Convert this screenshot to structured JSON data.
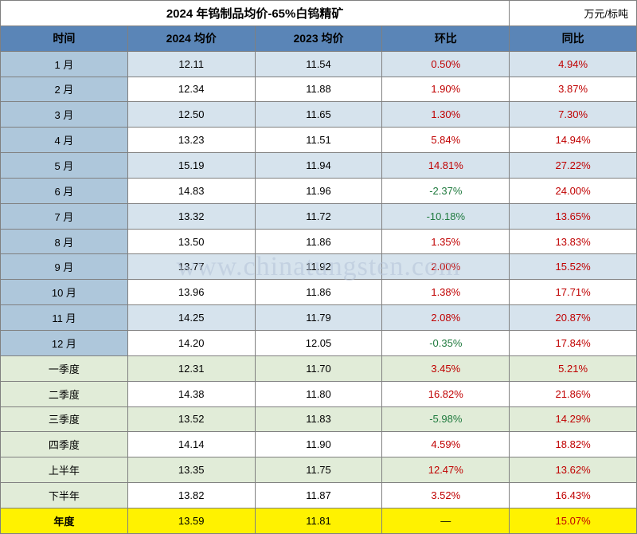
{
  "title": "2024 年钨制品均价-65%白钨精矿",
  "unit": "万元/标吨",
  "watermark": "www.chinatungsten.com",
  "columns": [
    "时间",
    "2024 均价",
    "2023 均价",
    "环比",
    "同比"
  ],
  "column_widths": [
    "20%",
    "20%",
    "20%",
    "20%",
    "20%"
  ],
  "header_bg": "#5a85b7",
  "header_text_color": "#000000",
  "colors": {
    "blue": "#aec7db",
    "lightblue": "#d6e3ed",
    "white": "#ffffff",
    "green": "#e1ecd8",
    "yellow": "#fff200",
    "border": "#808080",
    "pos_pct": "#c00000",
    "neg_pct": "#1f7a3e"
  },
  "rows": [
    {
      "label": "1 月",
      "v2024": "12.11",
      "v2023": "11.54",
      "mom": "0.50%",
      "mom_neg": false,
      "yoy": "4.94%",
      "yoy_neg": false,
      "label_bg": "blue",
      "row_bg": "lightblue"
    },
    {
      "label": "2 月",
      "v2024": "12.34",
      "v2023": "11.88",
      "mom": "1.90%",
      "mom_neg": false,
      "yoy": "3.87%",
      "yoy_neg": false,
      "label_bg": "blue",
      "row_bg": "white"
    },
    {
      "label": "3 月",
      "v2024": "12.50",
      "v2023": "11.65",
      "mom": "1.30%",
      "mom_neg": false,
      "yoy": "7.30%",
      "yoy_neg": false,
      "label_bg": "blue",
      "row_bg": "lightblue"
    },
    {
      "label": "4 月",
      "v2024": "13.23",
      "v2023": "11.51",
      "mom": "5.84%",
      "mom_neg": false,
      "yoy": "14.94%",
      "yoy_neg": false,
      "label_bg": "blue",
      "row_bg": "white"
    },
    {
      "label": "5 月",
      "v2024": "15.19",
      "v2023": "11.94",
      "mom": "14.81%",
      "mom_neg": false,
      "yoy": "27.22%",
      "yoy_neg": false,
      "label_bg": "blue",
      "row_bg": "lightblue"
    },
    {
      "label": "6 月",
      "v2024": "14.83",
      "v2023": "11.96",
      "mom": "-2.37%",
      "mom_neg": true,
      "yoy": "24.00%",
      "yoy_neg": false,
      "label_bg": "blue",
      "row_bg": "white"
    },
    {
      "label": "7 月",
      "v2024": "13.32",
      "v2023": "11.72",
      "mom": "-10.18%",
      "mom_neg": true,
      "yoy": "13.65%",
      "yoy_neg": false,
      "label_bg": "blue",
      "row_bg": "lightblue"
    },
    {
      "label": "8 月",
      "v2024": "13.50",
      "v2023": "11.86",
      "mom": "1.35%",
      "mom_neg": false,
      "yoy": "13.83%",
      "yoy_neg": false,
      "label_bg": "blue",
      "row_bg": "white"
    },
    {
      "label": "9 月",
      "v2024": "13.77",
      "v2023": "11.92",
      "mom": "2.00%",
      "mom_neg": false,
      "yoy": "15.52%",
      "yoy_neg": false,
      "label_bg": "blue",
      "row_bg": "lightblue"
    },
    {
      "label": "10 月",
      "v2024": "13.96",
      "v2023": "11.86",
      "mom": "1.38%",
      "mom_neg": false,
      "yoy": "17.71%",
      "yoy_neg": false,
      "label_bg": "blue",
      "row_bg": "white"
    },
    {
      "label": "11 月",
      "v2024": "14.25",
      "v2023": "11.79",
      "mom": "2.08%",
      "mom_neg": false,
      "yoy": "20.87%",
      "yoy_neg": false,
      "label_bg": "blue",
      "row_bg": "lightblue"
    },
    {
      "label": "12 月",
      "v2024": "14.20",
      "v2023": "12.05",
      "mom": "-0.35%",
      "mom_neg": true,
      "yoy": "17.84%",
      "yoy_neg": false,
      "label_bg": "blue",
      "row_bg": "white"
    },
    {
      "label": "一季度",
      "v2024": "12.31",
      "v2023": "11.70",
      "mom": "3.45%",
      "mom_neg": false,
      "yoy": "5.21%",
      "yoy_neg": false,
      "label_bg": "green",
      "row_bg": "green"
    },
    {
      "label": "二季度",
      "v2024": "14.38",
      "v2023": "11.80",
      "mom": "16.82%",
      "mom_neg": false,
      "yoy": "21.86%",
      "yoy_neg": false,
      "label_bg": "green",
      "row_bg": "white"
    },
    {
      "label": "三季度",
      "v2024": "13.52",
      "v2023": "11.83",
      "mom": "-5.98%",
      "mom_neg": true,
      "yoy": "14.29%",
      "yoy_neg": false,
      "label_bg": "green",
      "row_bg": "green"
    },
    {
      "label": "四季度",
      "v2024": "14.14",
      "v2023": "11.90",
      "mom": "4.59%",
      "mom_neg": false,
      "yoy": "18.82%",
      "yoy_neg": false,
      "label_bg": "green",
      "row_bg": "white"
    },
    {
      "label": "上半年",
      "v2024": "13.35",
      "v2023": "11.75",
      "mom": "12.47%",
      "mom_neg": false,
      "yoy": "13.62%",
      "yoy_neg": false,
      "label_bg": "green",
      "row_bg": "green"
    },
    {
      "label": "下半年",
      "v2024": "13.82",
      "v2023": "11.87",
      "mom": "3.52%",
      "mom_neg": false,
      "yoy": "16.43%",
      "yoy_neg": false,
      "label_bg": "green",
      "row_bg": "white"
    },
    {
      "label": "年度",
      "v2024": "13.59",
      "v2023": "11.81",
      "mom": "—",
      "mom_neg": null,
      "yoy": "15.07%",
      "yoy_neg": false,
      "label_bg": "yellow",
      "row_bg": "yellow"
    }
  ]
}
